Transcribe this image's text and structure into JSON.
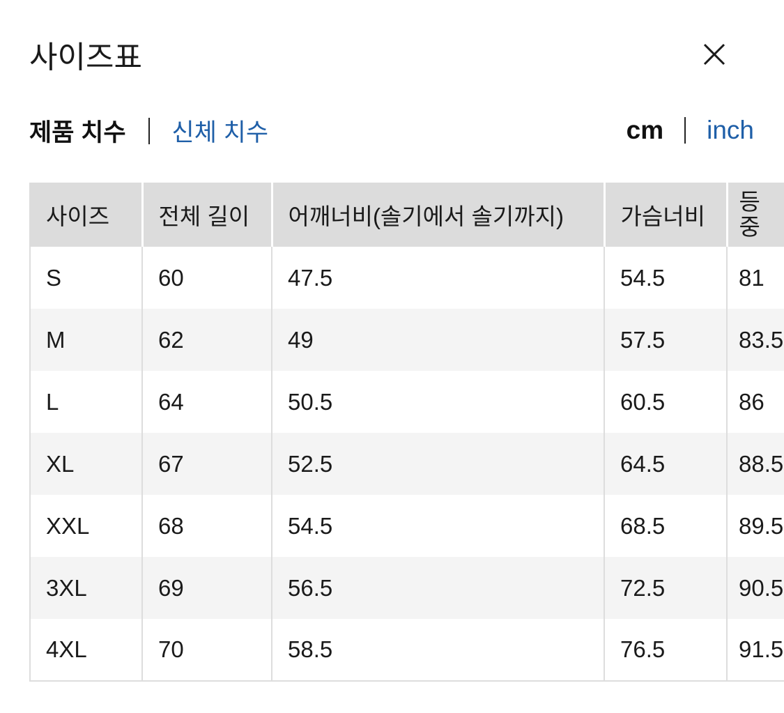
{
  "title": "사이즈표",
  "close_icon": "close-icon",
  "measure_tabs": [
    {
      "label": "제품 치수",
      "active": true
    },
    {
      "label": "신체 치수",
      "active": false
    }
  ],
  "unit_tabs": [
    {
      "label": "cm",
      "active": true
    },
    {
      "label": "inch",
      "active": false
    }
  ],
  "colors": {
    "link": "#1f5fa8",
    "header_bg": "#dcdcdc",
    "alt_row_bg": "#f4f4f4"
  },
  "table": {
    "headers": [
      "사이즈",
      "전체 길이",
      "어깨너비(솔기에서 솔기까지)",
      "가슴너비",
      "등 중"
    ],
    "rows": [
      [
        "S",
        "60",
        "47.5",
        "54.5",
        "81"
      ],
      [
        "M",
        "62",
        "49",
        "57.5",
        "83.5"
      ],
      [
        "L",
        "64",
        "50.5",
        "60.5",
        "86"
      ],
      [
        "XL",
        "67",
        "52.5",
        "64.5",
        "88.5"
      ],
      [
        "XXL",
        "68",
        "54.5",
        "68.5",
        "89.5"
      ],
      [
        "3XL",
        "69",
        "56.5",
        "72.5",
        "90.5"
      ],
      [
        "4XL",
        "70",
        "58.5",
        "76.5",
        "91.5"
      ]
    ]
  }
}
